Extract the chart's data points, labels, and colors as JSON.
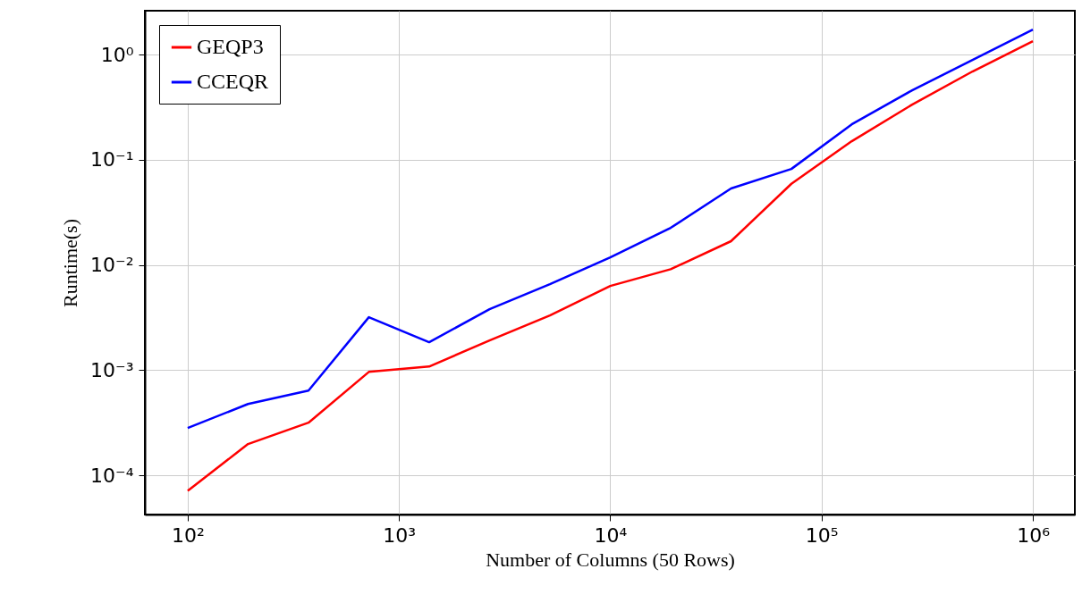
{
  "chart_data": {
    "type": "line",
    "xlabel": "Number of Columns (50 Rows)",
    "ylabel": "Runtime(s)",
    "x": [
      100,
      193,
      373,
      720,
      1389,
      2683,
      5179,
      10000,
      19307,
      37276,
      71969,
      138950,
      268270,
      517947,
      1000000
    ],
    "series": [
      {
        "name": "GEQP3",
        "color": "#ff0000",
        "values": [
          7.1e-05,
          0.000198,
          0.000316,
          0.00096,
          0.00108,
          0.00191,
          0.0033,
          0.0063,
          0.0091,
          0.0168,
          0.059,
          0.15,
          0.334,
          0.69,
          1.34
        ]
      },
      {
        "name": "CCEQR",
        "color": "#0000ff",
        "values": [
          0.000281,
          0.000476,
          0.000638,
          0.00318,
          0.00184,
          0.00379,
          0.00655,
          0.0118,
          0.0225,
          0.0532,
          0.0817,
          0.217,
          0.457,
          0.89,
          1.73
        ]
      }
    ],
    "log": "xy",
    "xlim": [
      62.7,
      1580000
    ],
    "ylim": [
      4.23e-05,
      2.61
    ],
    "xticks": [
      {
        "value": 100,
        "label": "10²"
      },
      {
        "value": 1000,
        "label": "10³"
      },
      {
        "value": 10000,
        "label": "10⁴"
      },
      {
        "value": 100000,
        "label": "10⁵"
      },
      {
        "value": 1000000,
        "label": "10⁶"
      }
    ],
    "yticks": [
      {
        "value": 0.0001,
        "label": "10⁻⁴"
      },
      {
        "value": 0.001,
        "label": "10⁻³"
      },
      {
        "value": 0.01,
        "label": "10⁻²"
      },
      {
        "value": 0.1,
        "label": "10⁻¹"
      },
      {
        "value": 1,
        "label": "10⁰"
      }
    ],
    "grid": true,
    "legend": "top left",
    "line_style": "solid"
  }
}
